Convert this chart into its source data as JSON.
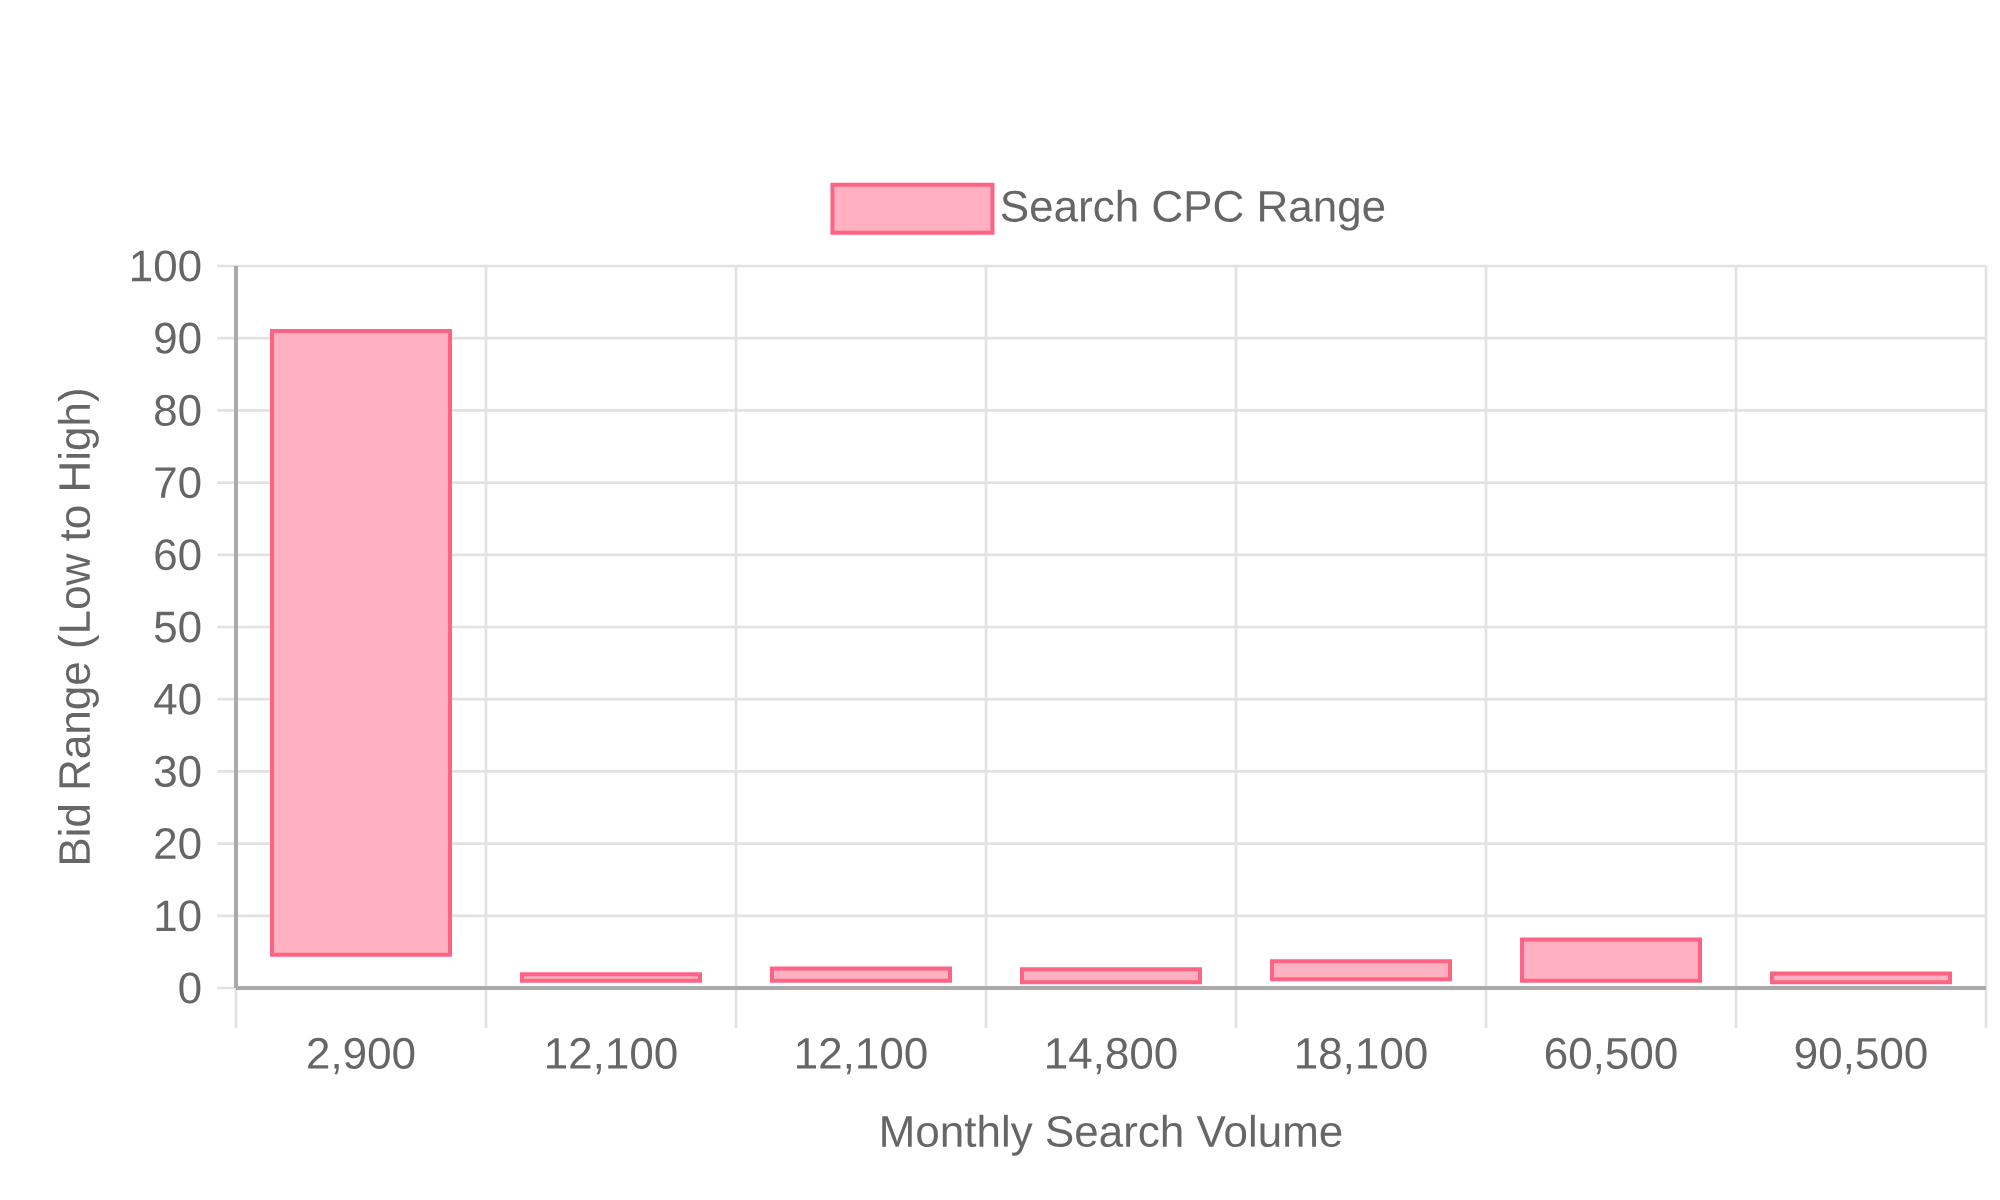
{
  "chart_data": {
    "type": "bar",
    "xlabel": "Monthly Search Volume",
    "ylabel": "Bid Range (Low to High)",
    "categories": [
      "2,900",
      "12,100",
      "12,100",
      "14,800",
      "18,100",
      "60,500",
      "90,500"
    ],
    "series": [
      {
        "name": "Search CPC Range",
        "color": "#ff6384",
        "values": [
          86.4,
          0.9,
          1.7,
          1.8,
          2.5,
          5.7,
          1.2
        ],
        "base": [
          4.6,
          1.0,
          1.0,
          0.8,
          1.2,
          1.0,
          0.8
        ]
      }
    ],
    "ylim": [
      0,
      100
    ],
    "yticks": [
      0,
      10,
      20,
      30,
      40,
      50,
      60,
      70,
      80,
      90,
      100
    ],
    "grid": true,
    "legend": "top"
  }
}
